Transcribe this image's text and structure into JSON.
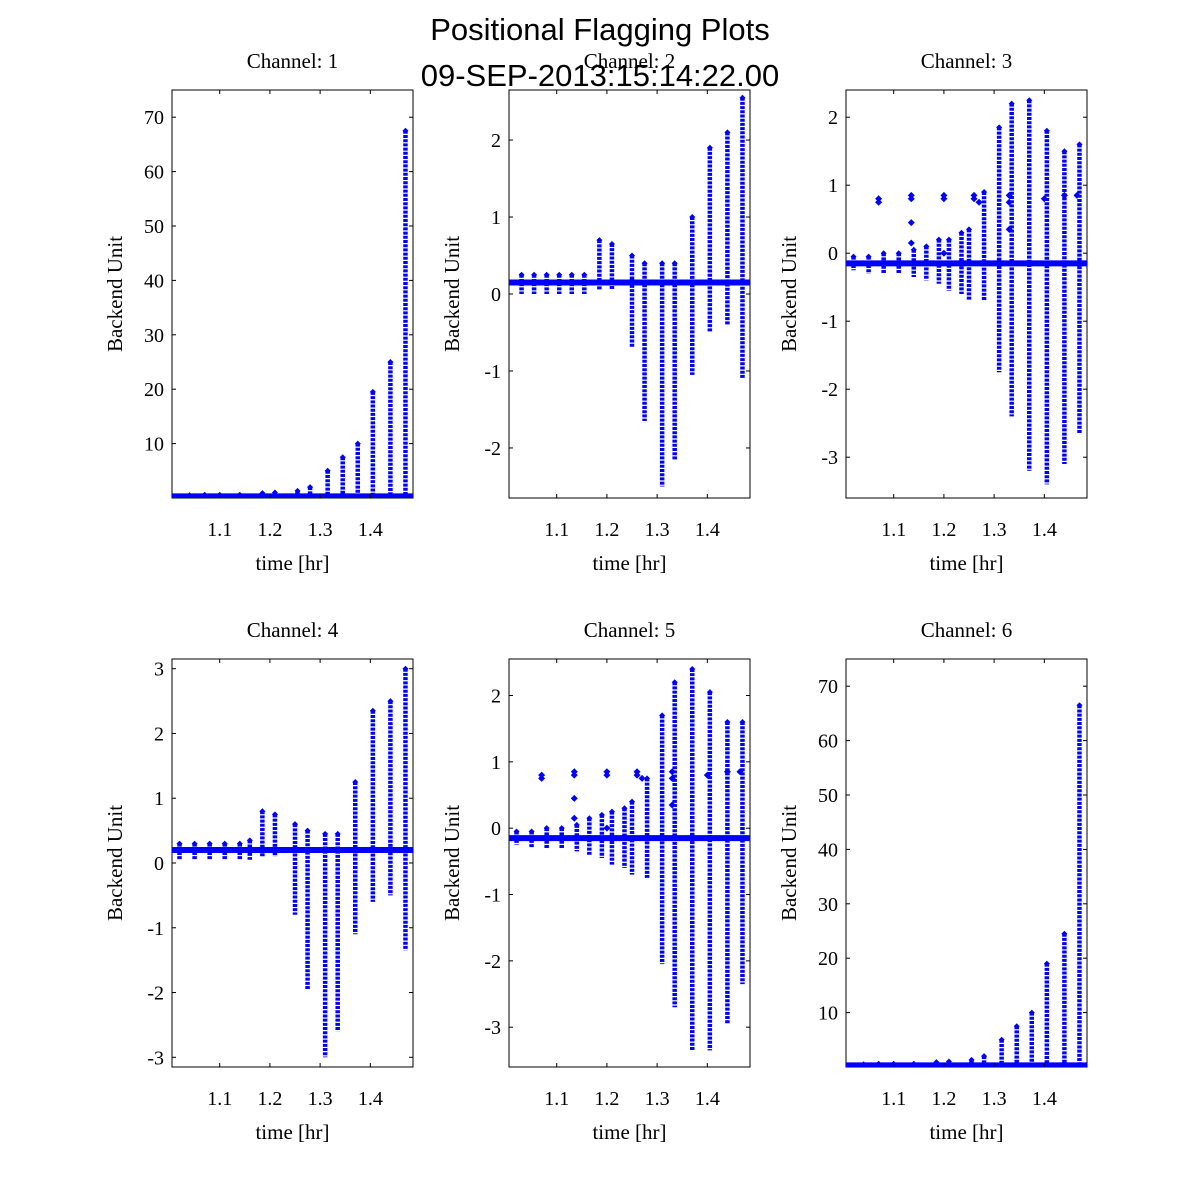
{
  "figure": {
    "title_line1": "Positional Flagging Plots",
    "title_line2": "09-SEP-2013:15:14:22.00",
    "marker_color": "#0000ff"
  },
  "chart_data": [
    {
      "type": "scatter",
      "title": "Channel: 1",
      "xlabel": "time [hr]",
      "ylabel": "Backend Unit",
      "xlim": [
        1.005,
        1.485
      ],
      "ylim": [
        0,
        75
      ],
      "xticks": [
        1.1,
        1.2,
        1.3,
        1.4
      ],
      "yticks": [
        10,
        20,
        30,
        40,
        50,
        60,
        70
      ],
      "baseline": 0.3,
      "bursts": [
        {
          "x": 1.04,
          "min": 0.1,
          "max": 0.5
        },
        {
          "x": 1.07,
          "min": 0.1,
          "max": 0.6
        },
        {
          "x": 1.1,
          "min": 0.1,
          "max": 0.6
        },
        {
          "x": 1.14,
          "min": 0.1,
          "max": 0.6
        },
        {
          "x": 1.185,
          "min": 0.1,
          "max": 0.9
        },
        {
          "x": 1.21,
          "min": 0.1,
          "max": 1.0
        },
        {
          "x": 1.255,
          "min": 0.1,
          "max": 1.3
        },
        {
          "x": 1.28,
          "min": 0.1,
          "max": 2.0
        },
        {
          "x": 1.315,
          "min": 0.1,
          "max": 5.0
        },
        {
          "x": 1.345,
          "min": 0.1,
          "max": 7.5
        },
        {
          "x": 1.375,
          "min": 0.1,
          "max": 10.0
        },
        {
          "x": 1.405,
          "min": 0.1,
          "max": 19.5
        },
        {
          "x": 1.44,
          "min": 0.1,
          "max": 25.0
        },
        {
          "x": 1.47,
          "min": 0.1,
          "max": 67.5
        }
      ],
      "outliers": []
    },
    {
      "type": "scatter",
      "title": "Channel: 2",
      "xlabel": "time [hr]",
      "ylabel": "Backend Unit",
      "xlim": [
        1.005,
        1.485
      ],
      "ylim": [
        -2.65,
        2.65
      ],
      "xticks": [
        1.1,
        1.2,
        1.3,
        1.4
      ],
      "yticks": [
        -2,
        -1,
        0,
        1,
        2
      ],
      "baseline": 0.15,
      "bursts": [
        {
          "x": 1.03,
          "min": 0.0,
          "max": 0.25
        },
        {
          "x": 1.055,
          "min": 0.0,
          "max": 0.25
        },
        {
          "x": 1.08,
          "min": 0.0,
          "max": 0.25
        },
        {
          "x": 1.105,
          "min": 0.0,
          "max": 0.25
        },
        {
          "x": 1.13,
          "min": 0.0,
          "max": 0.25
        },
        {
          "x": 1.155,
          "min": 0.0,
          "max": 0.25
        },
        {
          "x": 1.185,
          "min": 0.05,
          "max": 0.7
        },
        {
          "x": 1.21,
          "min": 0.05,
          "max": 0.65
        },
        {
          "x": 1.25,
          "min": -0.7,
          "max": 0.5
        },
        {
          "x": 1.275,
          "min": -1.65,
          "max": 0.4
        },
        {
          "x": 1.31,
          "min": -2.5,
          "max": 0.4
        },
        {
          "x": 1.335,
          "min": -2.15,
          "max": 0.4
        },
        {
          "x": 1.37,
          "min": -1.05,
          "max": 1.0
        },
        {
          "x": 1.405,
          "min": -0.5,
          "max": 1.9
        },
        {
          "x": 1.44,
          "min": -0.4,
          "max": 2.1
        },
        {
          "x": 1.47,
          "min": -1.1,
          "max": 2.55
        }
      ],
      "outliers": []
    },
    {
      "type": "scatter",
      "title": "Channel: 3",
      "xlabel": "time [hr]",
      "ylabel": "Backend Unit",
      "xlim": [
        1.005,
        1.485
      ],
      "ylim": [
        -3.6,
        2.4
      ],
      "xticks": [
        1.1,
        1.2,
        1.3,
        1.4
      ],
      "yticks": [
        -3,
        -2,
        -1,
        0,
        1,
        2
      ],
      "baseline": -0.15,
      "bursts": [
        {
          "x": 1.02,
          "min": -0.25,
          "max": -0.05
        },
        {
          "x": 1.05,
          "min": -0.3,
          "max": -0.05
        },
        {
          "x": 1.08,
          "min": -0.3,
          "max": 0.0
        },
        {
          "x": 1.11,
          "min": -0.3,
          "max": 0.0
        },
        {
          "x": 1.14,
          "min": -0.35,
          "max": 0.05
        },
        {
          "x": 1.165,
          "min": -0.4,
          "max": 0.1
        },
        {
          "x": 1.19,
          "min": -0.45,
          "max": 0.2
        },
        {
          "x": 1.21,
          "min": -0.55,
          "max": 0.2
        },
        {
          "x": 1.235,
          "min": -0.6,
          "max": 0.3
        },
        {
          "x": 1.25,
          "min": -0.7,
          "max": 0.35
        },
        {
          "x": 1.28,
          "min": -0.7,
          "max": 0.9
        },
        {
          "x": 1.31,
          "min": -1.75,
          "max": 1.85
        },
        {
          "x": 1.335,
          "min": -2.4,
          "max": 2.2
        },
        {
          "x": 1.37,
          "min": -3.2,
          "max": 2.25
        },
        {
          "x": 1.405,
          "min": -3.4,
          "max": 1.8
        },
        {
          "x": 1.44,
          "min": -3.1,
          "max": 1.5
        },
        {
          "x": 1.47,
          "min": -2.65,
          "max": 1.6
        }
      ],
      "outliers": [
        {
          "x": 1.07,
          "y": 0.8
        },
        {
          "x": 1.07,
          "y": 0.75
        },
        {
          "x": 1.135,
          "y": 0.85
        },
        {
          "x": 1.135,
          "y": 0.8
        },
        {
          "x": 1.135,
          "y": 0.45
        },
        {
          "x": 1.135,
          "y": 0.15
        },
        {
          "x": 1.2,
          "y": 0.85
        },
        {
          "x": 1.2,
          "y": 0.8
        },
        {
          "x": 1.2,
          "y": 0.0
        },
        {
          "x": 1.26,
          "y": 0.85
        },
        {
          "x": 1.26,
          "y": 0.8
        },
        {
          "x": 1.27,
          "y": 0.75
        },
        {
          "x": 1.33,
          "y": 0.85
        },
        {
          "x": 1.33,
          "y": 0.75
        },
        {
          "x": 1.33,
          "y": 0.35
        },
        {
          "x": 1.4,
          "y": 0.8
        },
        {
          "x": 1.44,
          "y": 0.85
        },
        {
          "x": 1.465,
          "y": 0.85
        }
      ]
    },
    {
      "type": "scatter",
      "title": "Channel: 4",
      "xlabel": "time [hr]",
      "ylabel": "Backend Unit",
      "xlim": [
        1.005,
        1.485
      ],
      "ylim": [
        -3.15,
        3.15
      ],
      "xticks": [
        1.1,
        1.2,
        1.3,
        1.4
      ],
      "yticks": [
        -3,
        -2,
        -1,
        0,
        1,
        2,
        3
      ],
      "baseline": 0.2,
      "bursts": [
        {
          "x": 1.02,
          "min": 0.05,
          "max": 0.3
        },
        {
          "x": 1.05,
          "min": 0.05,
          "max": 0.3
        },
        {
          "x": 1.08,
          "min": 0.05,
          "max": 0.3
        },
        {
          "x": 1.11,
          "min": 0.05,
          "max": 0.3
        },
        {
          "x": 1.14,
          "min": 0.05,
          "max": 0.3
        },
        {
          "x": 1.16,
          "min": 0.05,
          "max": 0.35
        },
        {
          "x": 1.185,
          "min": 0.1,
          "max": 0.8
        },
        {
          "x": 1.21,
          "min": 0.1,
          "max": 0.75
        },
        {
          "x": 1.25,
          "min": -0.8,
          "max": 0.6
        },
        {
          "x": 1.275,
          "min": -1.95,
          "max": 0.5
        },
        {
          "x": 1.31,
          "min": -3.0,
          "max": 0.45
        },
        {
          "x": 1.335,
          "min": -2.6,
          "max": 0.45
        },
        {
          "x": 1.37,
          "min": -1.1,
          "max": 1.25
        },
        {
          "x": 1.405,
          "min": -0.6,
          "max": 2.35
        },
        {
          "x": 1.44,
          "min": -0.5,
          "max": 2.5
        },
        {
          "x": 1.47,
          "min": -1.35,
          "max": 3.0
        }
      ],
      "outliers": []
    },
    {
      "type": "scatter",
      "title": "Channel: 5",
      "xlabel": "time [hr]",
      "ylabel": "Backend Unit",
      "xlim": [
        1.005,
        1.485
      ],
      "ylim": [
        -3.6,
        2.55
      ],
      "xticks": [
        1.1,
        1.2,
        1.3,
        1.4
      ],
      "yticks": [
        -3,
        -2,
        -1,
        0,
        1,
        2
      ],
      "baseline": -0.15,
      "bursts": [
        {
          "x": 1.02,
          "min": -0.25,
          "max": -0.05
        },
        {
          "x": 1.05,
          "min": -0.3,
          "max": -0.05
        },
        {
          "x": 1.08,
          "min": -0.3,
          "max": 0.0
        },
        {
          "x": 1.11,
          "min": -0.3,
          "max": 0.0
        },
        {
          "x": 1.14,
          "min": -0.35,
          "max": 0.05
        },
        {
          "x": 1.165,
          "min": -0.4,
          "max": 0.15
        },
        {
          "x": 1.19,
          "min": -0.45,
          "max": 0.2
        },
        {
          "x": 1.21,
          "min": -0.55,
          "max": 0.25
        },
        {
          "x": 1.235,
          "min": -0.6,
          "max": 0.3
        },
        {
          "x": 1.25,
          "min": -0.7,
          "max": 0.4
        },
        {
          "x": 1.28,
          "min": -0.75,
          "max": 0.75
        },
        {
          "x": 1.31,
          "min": -2.05,
          "max": 1.7
        },
        {
          "x": 1.335,
          "min": -2.7,
          "max": 2.2
        },
        {
          "x": 1.37,
          "min": -3.35,
          "max": 2.4
        },
        {
          "x": 1.405,
          "min": -3.35,
          "max": 2.05
        },
        {
          "x": 1.44,
          "min": -2.95,
          "max": 1.6
        },
        {
          "x": 1.47,
          "min": -2.35,
          "max": 1.6
        }
      ],
      "outliers": [
        {
          "x": 1.07,
          "y": 0.8
        },
        {
          "x": 1.07,
          "y": 0.75
        },
        {
          "x": 1.135,
          "y": 0.85
        },
        {
          "x": 1.135,
          "y": 0.8
        },
        {
          "x": 1.135,
          "y": 0.45
        },
        {
          "x": 1.135,
          "y": 0.15
        },
        {
          "x": 1.2,
          "y": 0.85
        },
        {
          "x": 1.2,
          "y": 0.8
        },
        {
          "x": 1.2,
          "y": 0.0
        },
        {
          "x": 1.26,
          "y": 0.85
        },
        {
          "x": 1.26,
          "y": 0.8
        },
        {
          "x": 1.27,
          "y": 0.75
        },
        {
          "x": 1.33,
          "y": 0.85
        },
        {
          "x": 1.33,
          "y": 0.75
        },
        {
          "x": 1.33,
          "y": 0.35
        },
        {
          "x": 1.4,
          "y": 0.8
        },
        {
          "x": 1.44,
          "y": 0.85
        },
        {
          "x": 1.465,
          "y": 0.85
        }
      ]
    },
    {
      "type": "scatter",
      "title": "Channel: 6",
      "xlabel": "time [hr]",
      "ylabel": "Backend Unit",
      "xlim": [
        1.005,
        1.485
      ],
      "ylim": [
        0,
        75
      ],
      "xticks": [
        1.1,
        1.2,
        1.3,
        1.4
      ],
      "yticks": [
        10,
        20,
        30,
        40,
        50,
        60,
        70
      ],
      "baseline": 0.3,
      "bursts": [
        {
          "x": 1.04,
          "min": 0.1,
          "max": 0.5
        },
        {
          "x": 1.07,
          "min": 0.1,
          "max": 0.6
        },
        {
          "x": 1.1,
          "min": 0.1,
          "max": 0.6
        },
        {
          "x": 1.14,
          "min": 0.1,
          "max": 0.6
        },
        {
          "x": 1.185,
          "min": 0.1,
          "max": 0.9
        },
        {
          "x": 1.21,
          "min": 0.1,
          "max": 1.0
        },
        {
          "x": 1.255,
          "min": 0.1,
          "max": 1.3
        },
        {
          "x": 1.28,
          "min": 0.1,
          "max": 2.0
        },
        {
          "x": 1.315,
          "min": 0.1,
          "max": 5.0
        },
        {
          "x": 1.345,
          "min": 0.1,
          "max": 7.5
        },
        {
          "x": 1.375,
          "min": 0.1,
          "max": 10.0
        },
        {
          "x": 1.405,
          "min": 0.1,
          "max": 19.0
        },
        {
          "x": 1.44,
          "min": 0.1,
          "max": 24.5
        },
        {
          "x": 1.47,
          "min": 0.1,
          "max": 66.5
        }
      ],
      "outliers": []
    }
  ]
}
